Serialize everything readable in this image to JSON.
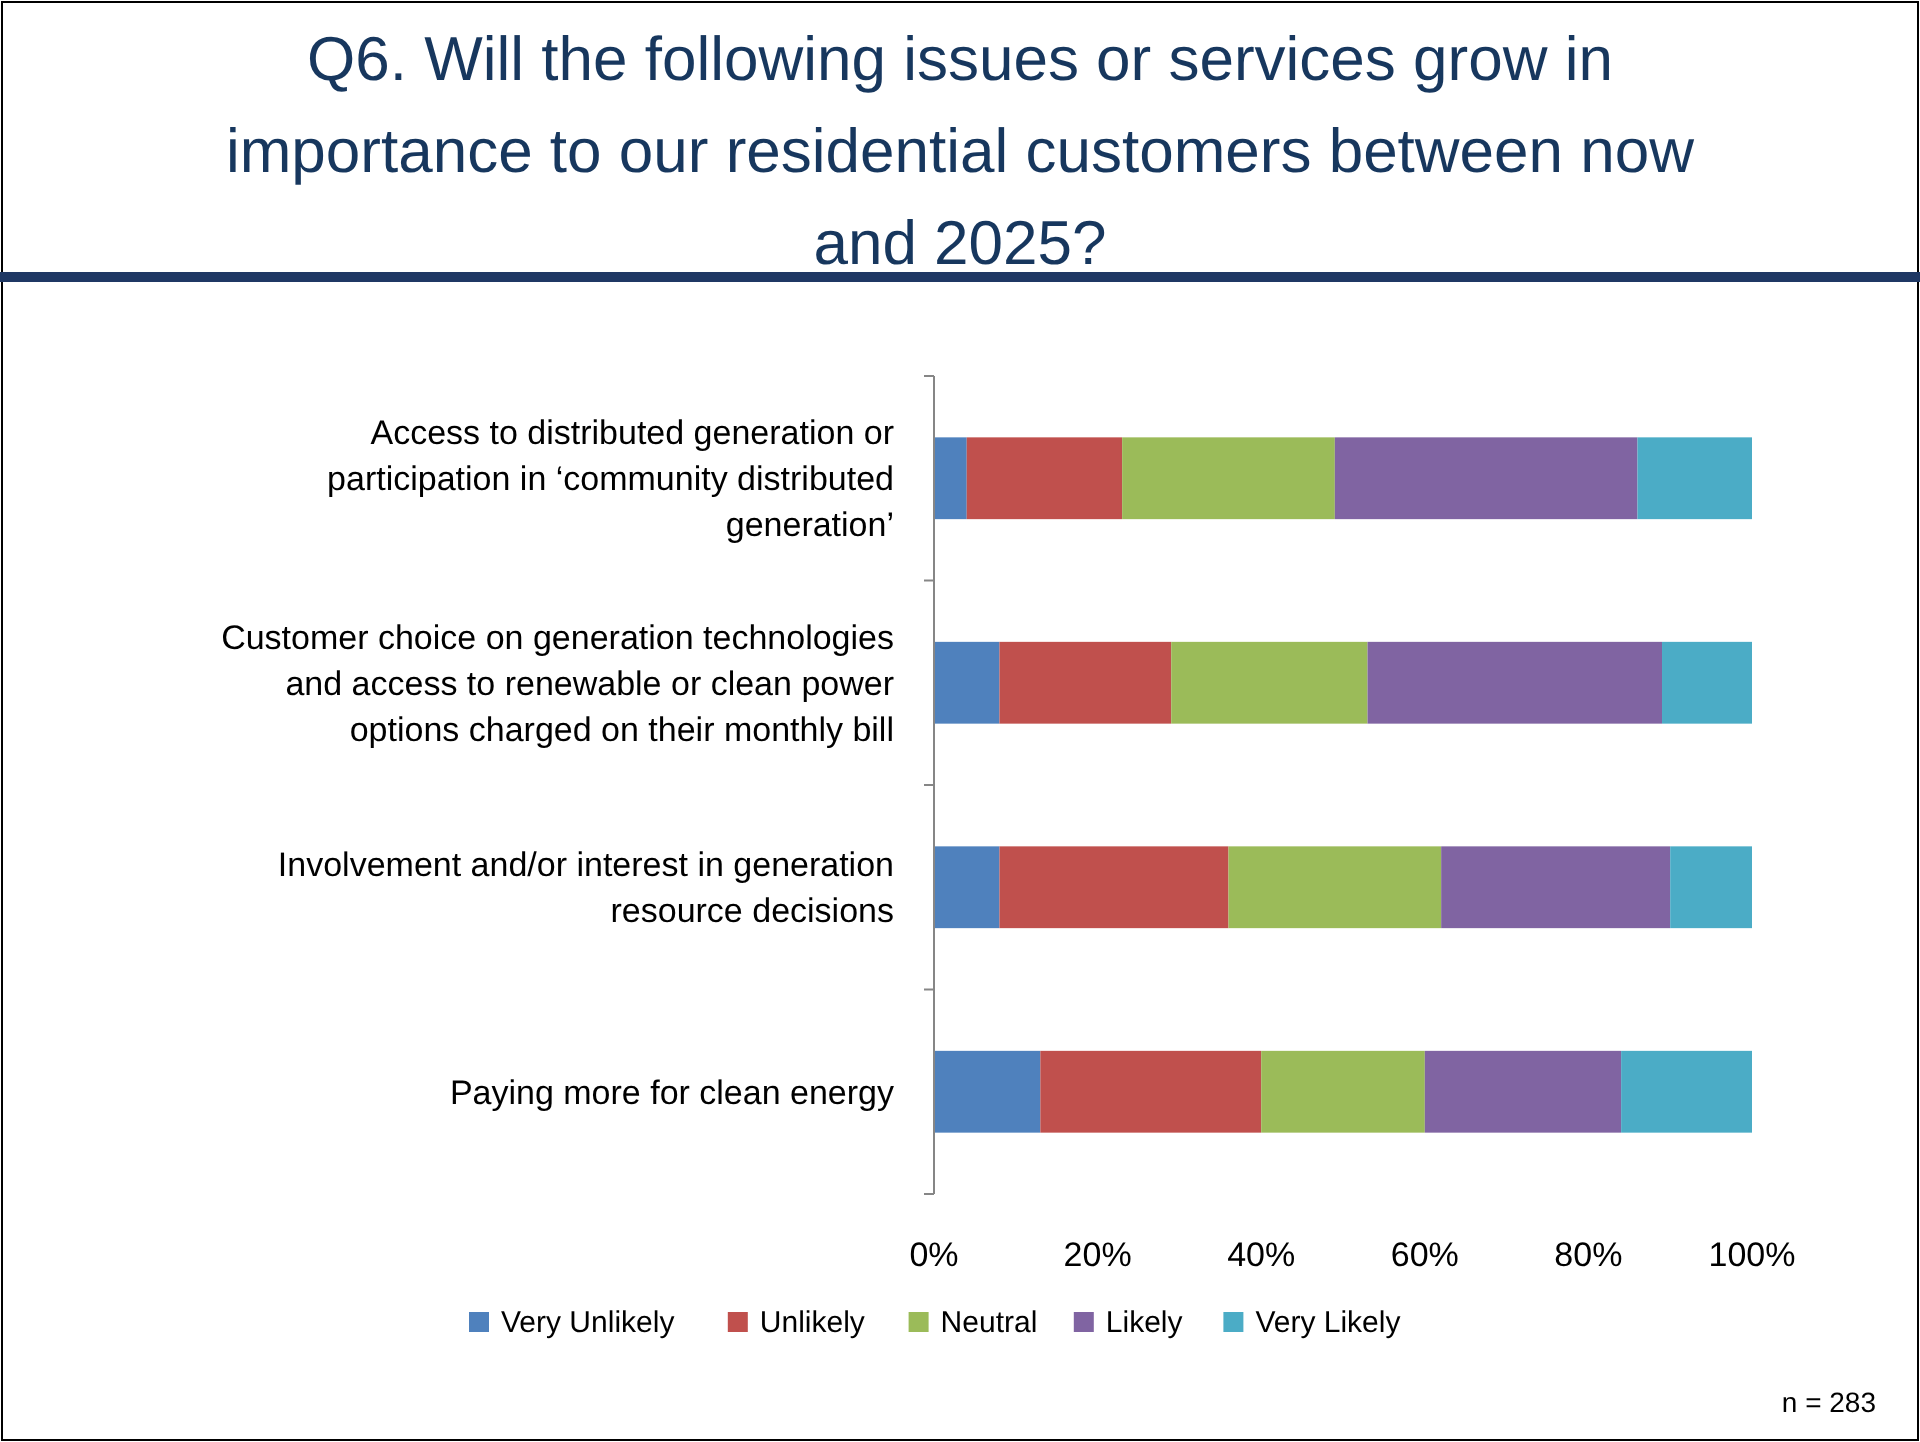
{
  "chart_data": {
    "type": "bar",
    "orientation": "horizontal",
    "stacked": true,
    "title": "Q6. Will the following issues or services grow in importance to our residential customers between now and 2025?",
    "categories": [
      "Access to distributed generation or participation in ‘community distributed generation’",
      "Customer choice on generation technologies and access to renewable or clean power options charged on their monthly bill",
      "Involvement and/or interest in generation resource decisions",
      "Paying more for clean energy"
    ],
    "series": [
      {
        "name": "Very Unlikely",
        "color": "#4f81bd",
        "values": [
          4,
          8,
          8,
          13
        ]
      },
      {
        "name": "Unlikely",
        "color": "#c0504d",
        "values": [
          19,
          21,
          28,
          27
        ]
      },
      {
        "name": "Neutral",
        "color": "#9bbb59",
        "values": [
          26,
          24,
          26,
          20
        ]
      },
      {
        "name": "Likely",
        "color": "#8064a2",
        "values": [
          37,
          36,
          28,
          24
        ]
      },
      {
        "name": "Very Likely",
        "color": "#4bacc6",
        "values": [
          14,
          11,
          10,
          16
        ]
      }
    ],
    "xlim": [
      0,
      100
    ],
    "xticks": [
      {
        "value": 0,
        "label": "0%"
      },
      {
        "value": 20,
        "label": "20%"
      },
      {
        "value": 40,
        "label": "40%"
      },
      {
        "value": 60,
        "label": "60%"
      },
      {
        "value": 80,
        "label": "80%"
      },
      {
        "value": 100,
        "label": "100%"
      }
    ],
    "legend": "bottom",
    "grid": false,
    "annotations": [
      "n = 283"
    ]
  }
}
